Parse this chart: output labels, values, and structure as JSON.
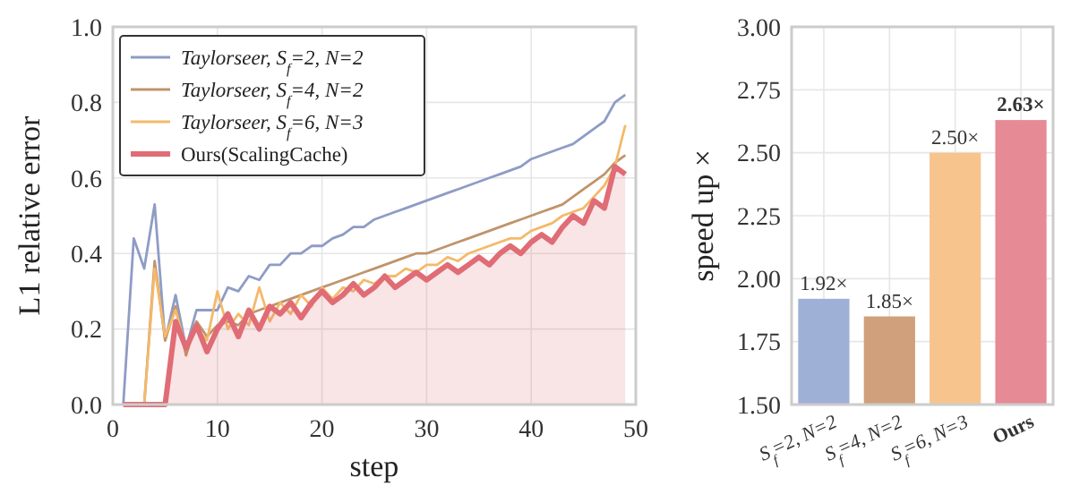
{
  "chart_data": [
    {
      "type": "line",
      "xlabel": "step",
      "ylabel": "L1 relative error",
      "x": [
        1,
        2,
        3,
        4,
        5,
        6,
        7,
        8,
        9,
        10,
        11,
        12,
        13,
        14,
        15,
        16,
        17,
        18,
        19,
        20,
        21,
        22,
        23,
        24,
        25,
        26,
        27,
        28,
        29,
        30,
        31,
        32,
        33,
        34,
        35,
        36,
        37,
        38,
        39,
        40,
        41,
        42,
        43,
        44,
        45,
        46,
        47,
        48,
        49
      ],
      "series": [
        {
          "name": "Taylorseer, S$_{f}$=2, N=2",
          "color": "#8e9cc6",
          "values": [
            0,
            0.44,
            0.36,
            0.53,
            0.17,
            0.29,
            0.15,
            0.25,
            0.25,
            0.25,
            0.31,
            0.3,
            0.34,
            0.33,
            0.37,
            0.37,
            0.4,
            0.4,
            0.42,
            0.42,
            0.44,
            0.45,
            0.47,
            0.47,
            0.49,
            0.5,
            0.51,
            0.52,
            0.53,
            0.54,
            0.55,
            0.56,
            0.57,
            0.58,
            0.59,
            0.6,
            0.61,
            0.62,
            0.63,
            0.65,
            0.66,
            0.67,
            0.68,
            0.69,
            0.71,
            0.73,
            0.75,
            0.8,
            0.82
          ]
        },
        {
          "name": "Taylorseer, S$_{f}$=4, N=2",
          "color": "#c0946a",
          "values": [
            0,
            0,
            0,
            0.38,
            0.17,
            0.26,
            0.13,
            0.22,
            0.18,
            0.21,
            0.22,
            0.21,
            0.24,
            0.25,
            0.26,
            0.27,
            0.28,
            0.29,
            0.3,
            0.31,
            0.32,
            0.33,
            0.34,
            0.35,
            0.36,
            0.37,
            0.38,
            0.39,
            0.4,
            0.4,
            0.41,
            0.42,
            0.43,
            0.44,
            0.45,
            0.46,
            0.47,
            0.48,
            0.49,
            0.5,
            0.51,
            0.52,
            0.53,
            0.55,
            0.57,
            0.59,
            0.61,
            0.64,
            0.66
          ]
        },
        {
          "name": "Taylorseer, S$_{f}$=6, N=3",
          "color": "#f4b96a",
          "values": [
            0,
            0,
            0,
            0.36,
            0.18,
            0.25,
            0.15,
            0.2,
            0.17,
            0.3,
            0.2,
            0.24,
            0.21,
            0.31,
            0.22,
            0.27,
            0.24,
            0.29,
            0.26,
            0.31,
            0.28,
            0.31,
            0.3,
            0.33,
            0.32,
            0.34,
            0.34,
            0.36,
            0.35,
            0.37,
            0.37,
            0.39,
            0.38,
            0.4,
            0.41,
            0.42,
            0.43,
            0.44,
            0.44,
            0.46,
            0.47,
            0.48,
            0.5,
            0.51,
            0.52,
            0.55,
            0.58,
            0.63,
            0.74
          ]
        },
        {
          "name": "Ours(ScalingCache)",
          "type": "area",
          "color": "#e06c75",
          "values": [
            0,
            0,
            0,
            0,
            0,
            0.22,
            0.15,
            0.21,
            0.14,
            0.2,
            0.24,
            0.18,
            0.25,
            0.2,
            0.26,
            0.24,
            0.27,
            0.23,
            0.27,
            0.3,
            0.27,
            0.29,
            0.32,
            0.29,
            0.31,
            0.34,
            0.31,
            0.33,
            0.35,
            0.33,
            0.35,
            0.37,
            0.35,
            0.37,
            0.39,
            0.37,
            0.4,
            0.42,
            0.4,
            0.43,
            0.45,
            0.43,
            0.47,
            0.5,
            0.48,
            0.54,
            0.52,
            0.63,
            0.61
          ]
        }
      ],
      "xlim": [
        0,
        50
      ],
      "xticks": [
        0,
        10,
        20,
        30,
        40,
        50
      ],
      "ylim": [
        0,
        1
      ],
      "yticks": [
        {
          "value": 0,
          "label": "0.0"
        },
        {
          "value": 0.2,
          "label": "0.2"
        },
        {
          "value": 0.4,
          "label": "0.4"
        },
        {
          "value": 0.6,
          "label": "0.6"
        },
        {
          "value": 0.8,
          "label": "0.8"
        },
        {
          "value": 1,
          "label": "1.0"
        }
      ],
      "grid": true,
      "legend": "top left"
    },
    {
      "type": "bar",
      "ylabel": "speed up ×",
      "categories": [
        "S$_{f}$=2, N=2",
        "S$_{f}$=4, N=2",
        "S$_{f}$=6, N=3",
        "Ours"
      ],
      "values": [
        1.92,
        1.85,
        2.5,
        2.63
      ],
      "colors": [
        "#9fb0d6",
        "#d0a07c",
        "#f7c48e",
        "#e68a95"
      ],
      "value_labels": [
        "1.92×",
        "1.85×",
        "2.50×",
        "2.63×"
      ],
      "ylim": [
        1.5,
        3.0
      ],
      "yticks": [
        {
          "value": 1.5,
          "label": "1.50"
        },
        {
          "value": 1.75,
          "label": "1.75"
        },
        {
          "value": 2,
          "label": "2.00"
        },
        {
          "value": 2.25,
          "label": "2.25"
        },
        {
          "value": 2.5,
          "label": "2.50"
        },
        {
          "value": 2.75,
          "label": "2.75"
        },
        {
          "value": 3,
          "label": "3.00"
        }
      ],
      "grid": true
    }
  ]
}
